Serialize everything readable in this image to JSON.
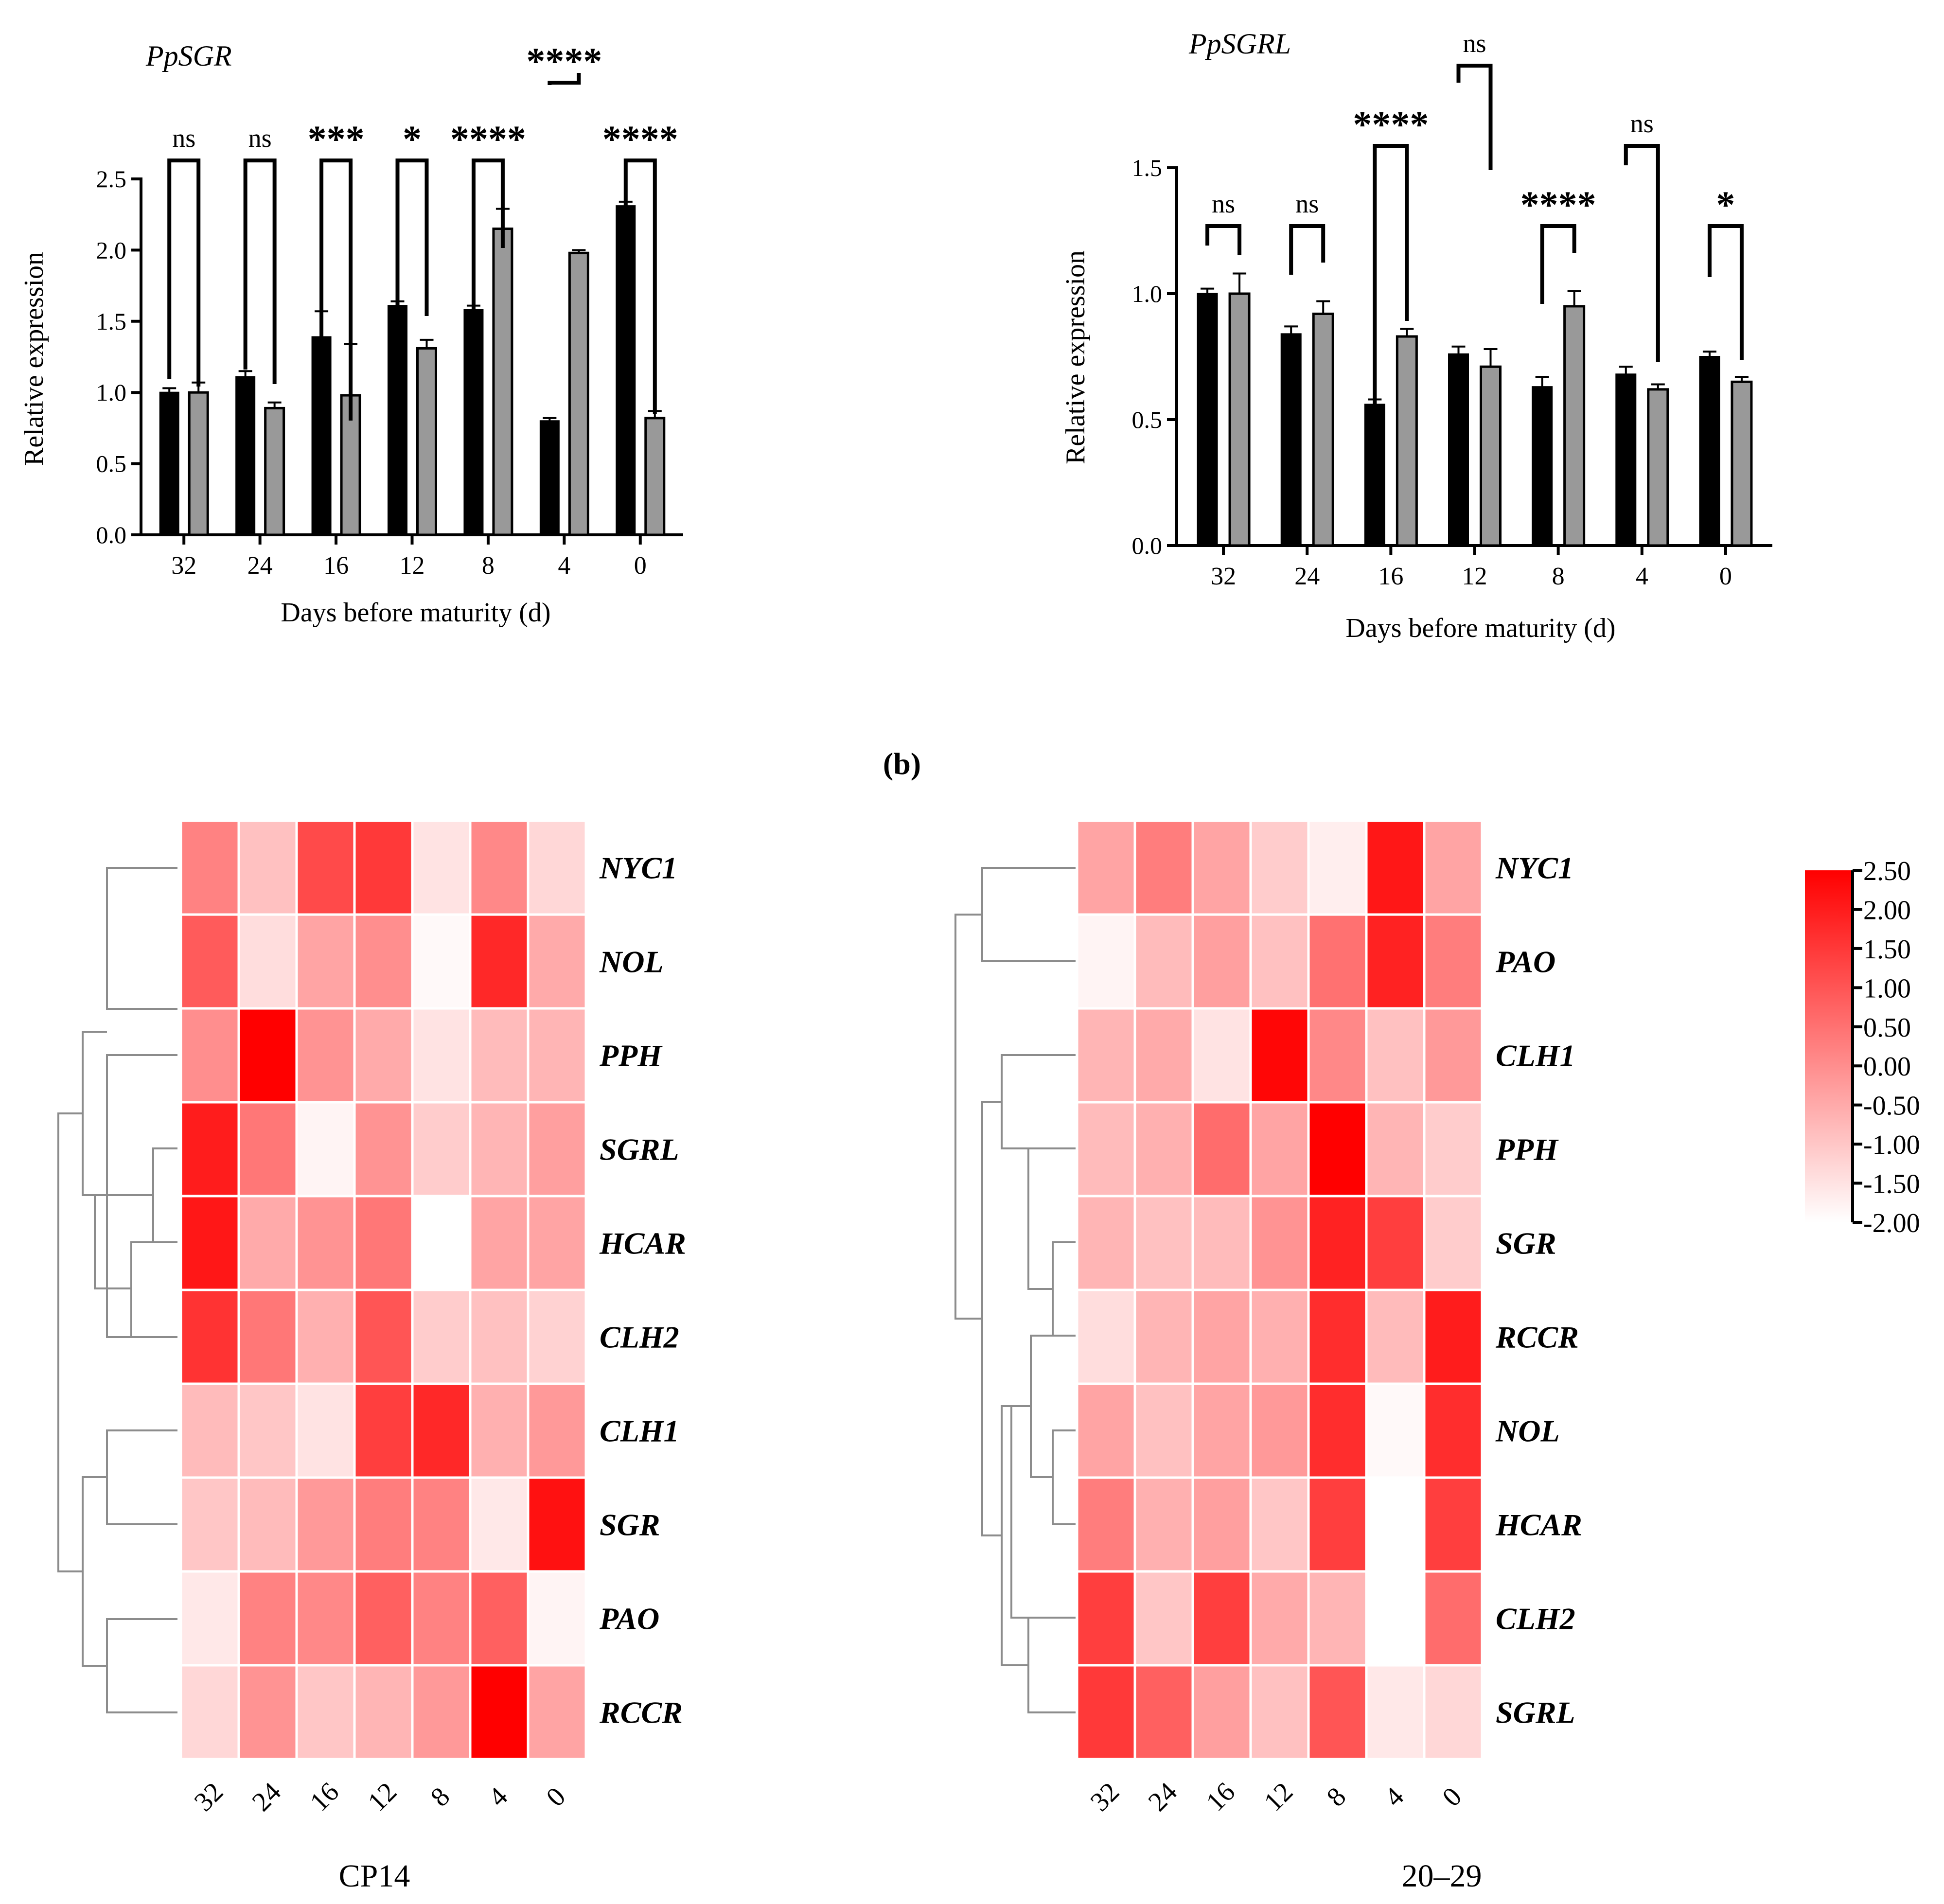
{
  "bar_panel_a": {
    "title": "PpSGR",
    "ylabel": "Relative expression",
    "xlabel": "Days before maturity (d)"
  },
  "bar_panel_b": {
    "title": "PpSGRL",
    "ylabel": "Relative expression",
    "xlabel": "Days before maturity (d)"
  },
  "panel_label": "(b)",
  "heatmap_captions": {
    "left": "CP14",
    "right": "20–29"
  },
  "colors": {
    "bar_black": "#000000",
    "bar_gray": "#999999",
    "heat_high": "#ff0000",
    "heat_low": "#ffffff"
  },
  "chart_data": [
    {
      "type": "bar",
      "title": "PpSGR",
      "categories": [
        "32",
        "24",
        "16",
        "12",
        "8",
        "4",
        "0"
      ],
      "series": [
        {
          "name": "CP14",
          "values": [
            1.0,
            1.11,
            1.39,
            1.61,
            1.58,
            0.8,
            2.31
          ],
          "errors": [
            0.03,
            0.04,
            0.18,
            0.03,
            0.03,
            0.02,
            0.03
          ]
        },
        {
          "name": "20–29",
          "values": [
            1.0,
            0.89,
            0.98,
            1.31,
            2.15,
            1.98,
            0.82
          ],
          "errors": [
            0.07,
            0.04,
            0.36,
            0.06,
            0.14,
            0.02,
            0.05
          ]
        }
      ],
      "significance": [
        "ns",
        "ns",
        "***",
        "*",
        "****",
        "****",
        "****"
      ],
      "xlabel": "Days before maturity (d)",
      "ylabel": "Relative expression",
      "ylim": [
        0,
        2.5
      ],
      "yticks": [
        "0.0",
        "0.5",
        "1.0",
        "1.5",
        "2.0",
        "2.5"
      ]
    },
    {
      "type": "bar",
      "title": "PpSGRL",
      "categories": [
        "32",
        "24",
        "16",
        "12",
        "8",
        "4",
        "0"
      ],
      "series": [
        {
          "name": "CP14",
          "values": [
            1.0,
            0.84,
            0.56,
            0.76,
            0.63,
            0.68,
            0.75
          ],
          "errors": [
            0.02,
            0.03,
            0.02,
            0.03,
            0.04,
            0.03,
            0.02
          ]
        },
        {
          "name": "20–29",
          "values": [
            1.0,
            0.92,
            0.83,
            0.71,
            0.95,
            0.62,
            0.65
          ],
          "errors": [
            0.08,
            0.05,
            0.03,
            0.07,
            0.06,
            0.02,
            0.02
          ]
        }
      ],
      "significance": [
        "ns",
        "ns",
        "****",
        "ns",
        "****",
        "ns",
        "*"
      ],
      "xlabel": "Days before maturity (d)",
      "ylabel": "Relative expression",
      "ylim": [
        0,
        1.5
      ],
      "yticks": [
        "0.0",
        "0.5",
        "1.0",
        "1.5"
      ]
    },
    {
      "type": "heatmap",
      "title": "CP14",
      "columns": [
        "32",
        "24",
        "16",
        "12",
        "8",
        "4",
        "0"
      ],
      "rows": [
        "NYC1",
        "NOL",
        "PPH",
        "SGRL",
        "HCAR",
        "CLH2",
        "CLH1",
        "SGR",
        "PAO",
        "RCCR"
      ],
      "values": [
        [
          0.2,
          -0.9,
          1.2,
          1.5,
          -1.5,
          0.1,
          -1.3
        ],
        [
          0.9,
          -1.4,
          -0.4,
          0.0,
          -1.9,
          1.8,
          -0.5
        ],
        [
          0.0,
          2.5,
          -0.1,
          -0.5,
          -1.5,
          -0.8,
          -0.7
        ],
        [
          2.0,
          0.4,
          -1.8,
          -0.1,
          -1.1,
          -0.7,
          -0.3
        ],
        [
          2.1,
          -0.5,
          -0.1,
          0.4,
          -2.0,
          -0.4,
          -0.4
        ],
        [
          1.6,
          0.4,
          -0.6,
          1.0,
          -1.1,
          -0.9,
          -1.2
        ],
        [
          -0.8,
          -1.0,
          -1.5,
          1.4,
          1.8,
          -0.6,
          -0.2
        ],
        [
          -1.0,
          -0.8,
          -0.2,
          0.3,
          0.2,
          -1.6,
          2.2
        ],
        [
          -1.6,
          0.2,
          0.1,
          0.8,
          0.2,
          0.8,
          -1.8
        ],
        [
          -1.3,
          -0.1,
          -1.0,
          -0.7,
          -0.2,
          2.5,
          -0.4
        ]
      ],
      "colorbar": {
        "min": -2.0,
        "max": 2.5,
        "ticks": [
          "2.50",
          "2.00",
          "1.50",
          "1.00",
          "0.50",
          "0.00",
          "-0.50",
          "-1.00",
          "-1.50",
          "-2.00"
        ]
      }
    },
    {
      "type": "heatmap",
      "title": "20–29",
      "columns": [
        "32",
        "24",
        "16",
        "12",
        "8",
        "4",
        "0"
      ],
      "rows": [
        "NYC1",
        "PAO",
        "CLH1",
        "PPH",
        "SGR",
        "RCCR",
        "NOL",
        "HCAR",
        "CLH2",
        "SGRL"
      ],
      "values": [
        [
          -0.4,
          0.3,
          -0.4,
          -1.1,
          -1.7,
          2.1,
          -0.4
        ],
        [
          -1.8,
          -0.8,
          -0.3,
          -0.9,
          0.5,
          1.9,
          0.3
        ],
        [
          -0.7,
          -0.5,
          -1.5,
          2.4,
          0.1,
          -0.9,
          -0.2
        ],
        [
          -0.8,
          -0.6,
          0.6,
          -0.4,
          2.5,
          -0.7,
          -1.1
        ],
        [
          -0.7,
          -0.9,
          -0.8,
          -0.1,
          1.9,
          1.4,
          -1.1
        ],
        [
          -1.4,
          -0.7,
          -0.4,
          -0.6,
          1.7,
          -0.8,
          2.0
        ],
        [
          -0.4,
          -0.9,
          -0.4,
          -0.2,
          1.7,
          -1.9,
          1.7
        ],
        [
          0.3,
          -0.6,
          -0.3,
          -1.0,
          1.4,
          -2.0,
          1.4
        ],
        [
          1.4,
          -1.0,
          1.4,
          -0.5,
          -0.7,
          -2.0,
          0.6
        ],
        [
          1.5,
          0.8,
          -0.3,
          -0.9,
          1.0,
          -1.6,
          -1.3
        ]
      ]
    }
  ]
}
